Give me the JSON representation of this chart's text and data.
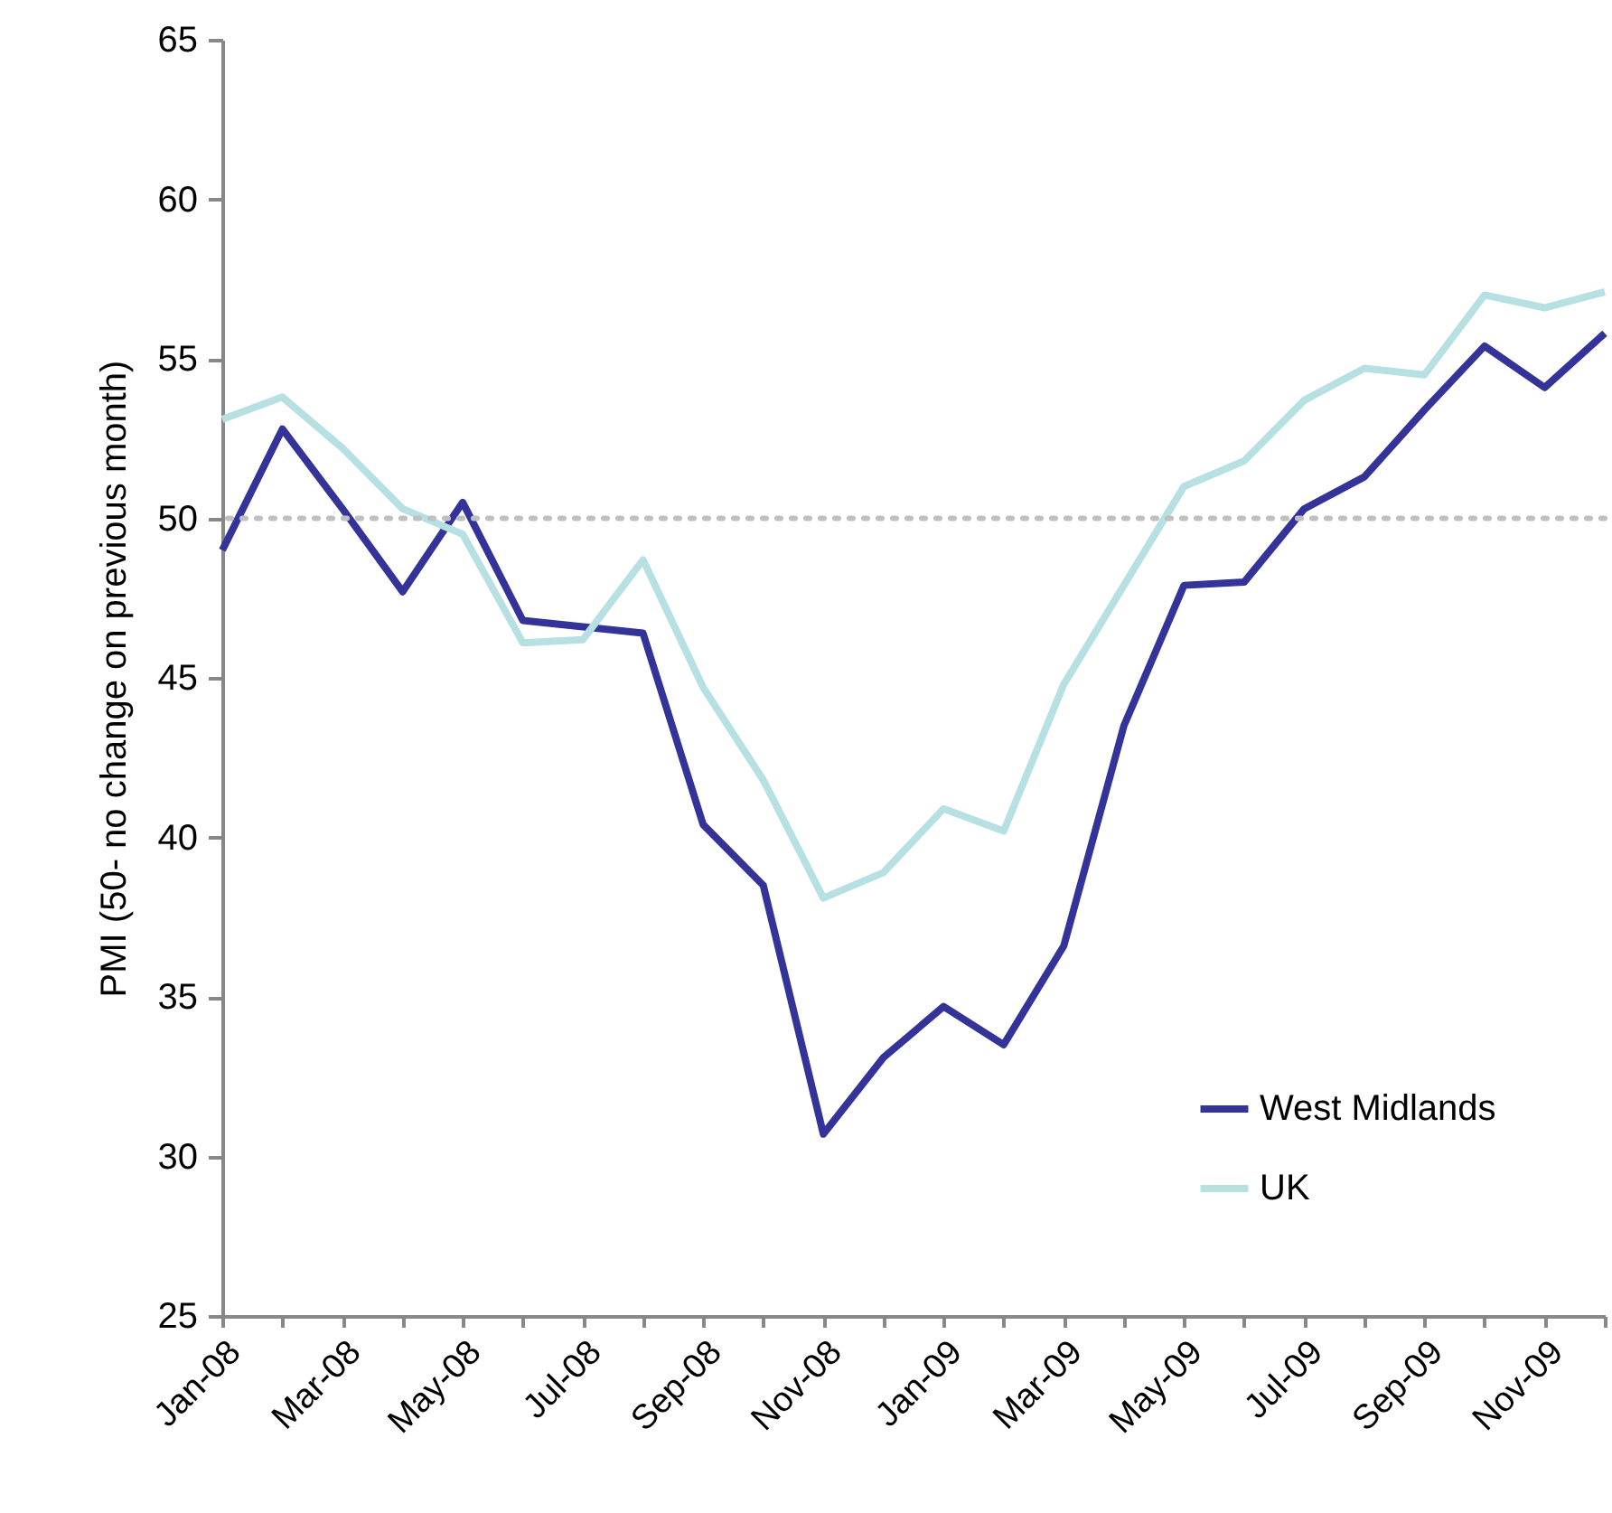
{
  "chart_data": {
    "type": "line",
    "ylabel": "PMI (50- no change on previous month)",
    "categories": [
      "Jan-08",
      null,
      "Mar-08",
      null,
      "May-08",
      null,
      "Jul-08",
      null,
      "Sep-08",
      null,
      "Nov-08",
      null,
      "Jan-09",
      null,
      "Mar-09",
      null,
      "May-09",
      null,
      "Jul-09",
      null,
      "Sep-09",
      null,
      "Nov-09",
      null
    ],
    "series": [
      {
        "name": "West Midlands",
        "color": "#333399",
        "values": [
          49.0,
          52.8,
          50.3,
          47.7,
          50.5,
          46.8,
          46.6,
          46.4,
          40.4,
          38.5,
          30.7,
          33.1,
          34.7,
          33.5,
          36.6,
          43.5,
          47.9,
          48.0,
          50.3,
          51.3,
          53.4,
          55.4,
          54.1,
          55.8
        ]
      },
      {
        "name": "UK",
        "color": "#b7e0e3",
        "values": [
          53.1,
          53.8,
          52.2,
          50.3,
          49.5,
          46.1,
          46.2,
          48.7,
          44.7,
          41.8,
          38.1,
          38.9,
          40.9,
          40.2,
          44.8,
          47.9,
          51.0,
          51.8,
          53.7,
          54.7,
          54.5,
          57.0,
          56.6,
          57.1
        ]
      }
    ],
    "ylim": [
      25,
      65
    ],
    "yticks": [
      25,
      30,
      35,
      40,
      45,
      50,
      55,
      60,
      65
    ],
    "ref_lines": [
      {
        "axis": "y",
        "value": 50,
        "color": "#c0c0c0",
        "line_style": "dotted"
      }
    ],
    "legend": "bottom right",
    "grid": false,
    "marker": "none",
    "line_style": "solid"
  }
}
